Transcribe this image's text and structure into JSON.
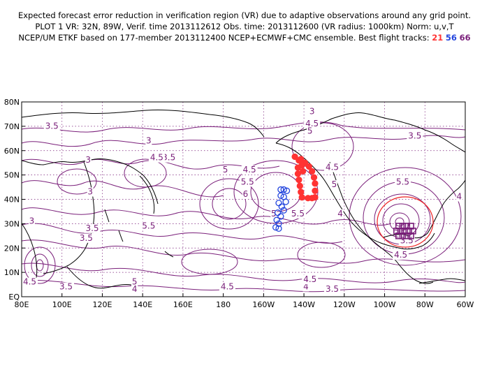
{
  "header": {
    "line1": "Expected forecast error reduction in verification region (VR) due to adaptive observations around any grid point.",
    "line2": "PLOT 1 VR: 32N, 89W, Verif. time 2013112612 Obs. time: 2013112600 (VR radius: 1000km) Norm: u,v,T",
    "line3_prefix": "NCEP/UM ETKF based on 177-member 2013112400 NCEP+ECMWF+CMC ensemble. Best flight tracks:",
    "track_a": "21",
    "track_b": "56",
    "track_c": "66"
  },
  "map": {
    "lat_labels": [
      "80N",
      "70N",
      "60N",
      "50N",
      "40N",
      "30N",
      "20N",
      "10N",
      "EQ"
    ],
    "lon_labels": [
      "80E",
      "100E",
      "120E",
      "140E",
      "160E",
      "180",
      "160W",
      "140W",
      "120W",
      "100W",
      "80W",
      "60W"
    ],
    "contour_labels": [
      {
        "text": "3.5",
        "lon": 95,
        "lat": 69
      },
      {
        "text": "3",
        "lon": 143,
        "lat": 63
      },
      {
        "text": "3.5",
        "lon": 153,
        "lat": 56
      },
      {
        "text": "4.5",
        "lon": 147,
        "lat": 56
      },
      {
        "text": "3",
        "lon": 113,
        "lat": 55
      },
      {
        "text": "3",
        "lon": 114,
        "lat": 42
      },
      {
        "text": "3",
        "lon": 85,
        "lat": 30
      },
      {
        "text": "3.5",
        "lon": 115,
        "lat": 27
      },
      {
        "text": "3.5",
        "lon": 112,
        "lat": 23
      },
      {
        "text": "5.5",
        "lon": 143,
        "lat": 28
      },
      {
        "text": "4.5",
        "lon": -167,
        "lat": 51
      },
      {
        "text": "5",
        "lon": -179,
        "lat": 51
      },
      {
        "text": "5.5",
        "lon": -168,
        "lat": 46
      },
      {
        "text": "6",
        "lon": -169,
        "lat": 41
      },
      {
        "text": "5",
        "lon": -155,
        "lat": 33
      },
      {
        "text": "5.5",
        "lon": -143,
        "lat": 33
      },
      {
        "text": "3",
        "lon": -136,
        "lat": 75
      },
      {
        "text": "4.5",
        "lon": -136,
        "lat": 70
      },
      {
        "text": "5",
        "lon": -137,
        "lat": 67
      },
      {
        "text": "4.5",
        "lon": -126,
        "lat": 52
      },
      {
        "text": "5",
        "lon": -125,
        "lat": 45
      },
      {
        "text": "4",
        "lon": -122,
        "lat": 33
      },
      {
        "text": "3.5",
        "lon": -85,
        "lat": 65
      },
      {
        "text": "5.5",
        "lon": -91,
        "lat": 46
      },
      {
        "text": "4",
        "lon": -63,
        "lat": 40
      },
      {
        "text": "3.5",
        "lon": -89,
        "lat": 22
      },
      {
        "text": "4.5",
        "lon": -92,
        "lat": 16
      },
      {
        "text": "4.5",
        "lon": 84,
        "lat": 5
      },
      {
        "text": "3.5",
        "lon": 102,
        "lat": 3
      },
      {
        "text": "5",
        "lon": 136,
        "lat": 5
      },
      {
        "text": "4",
        "lon": 136,
        "lat": 2
      },
      {
        "text": "4.5",
        "lon": -178,
        "lat": 3
      },
      {
        "text": "4",
        "lon": -139,
        "lat": 3
      },
      {
        "text": "4.5",
        "lon": -137,
        "lat": 6
      },
      {
        "text": "3.5",
        "lon": -126,
        "lat": 2
      }
    ],
    "colors": {
      "contour": "#7a1f7a",
      "track_red": "#ff3333",
      "track_blue": "#2244dd",
      "track_purple": "#7a1f7a",
      "vr_circle": "#ee2222",
      "coast": "#000000"
    }
  }
}
